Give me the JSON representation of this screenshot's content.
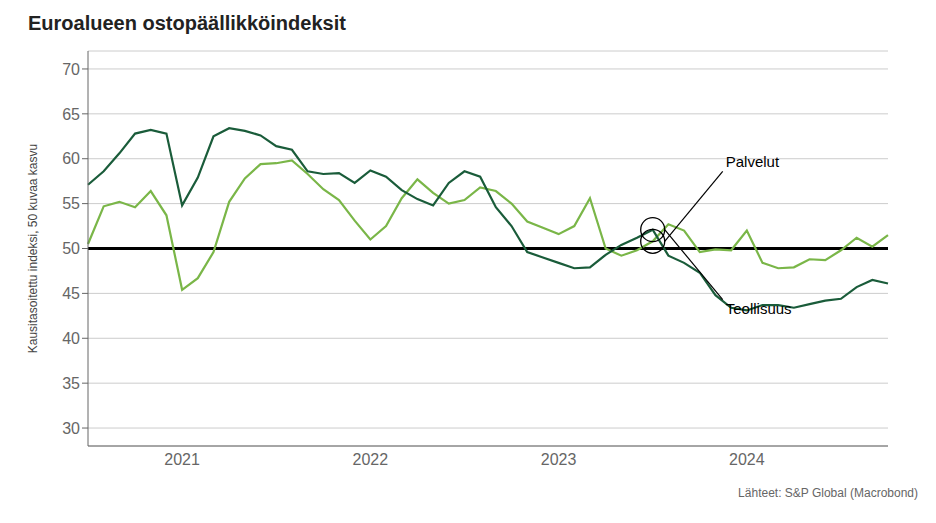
{
  "chart_data": {
    "type": "line",
    "title": "Euroalueen ostopäällikköindeksit",
    "ylabel": "Kausitasoitettu indeksi, 50 kuvaa kasvu",
    "source": "Lähteet: S&P Global (Macrobond)",
    "categories": [
      null,
      null,
      null,
      null,
      null,
      null,
      "2021",
      null,
      null,
      null,
      null,
      null,
      null,
      null,
      null,
      null,
      null,
      null,
      "2022",
      null,
      null,
      null,
      null,
      null,
      null,
      null,
      null,
      null,
      null,
      null,
      "2023",
      null,
      null,
      null,
      null,
      null,
      null,
      null,
      null,
      null,
      null,
      null,
      "2024",
      null,
      null,
      null,
      null,
      null,
      null,
      null,
      null,
      null
    ],
    "series": [
      {
        "name": "Palvelut",
        "color": "#7ab648",
        "values": [
          50.5,
          54.7,
          55.2,
          54.6,
          56.4,
          53.7,
          45.4,
          46.7,
          49.6,
          55.2,
          57.8,
          59.4,
          59.5,
          59.8,
          58.3,
          56.6,
          55.4,
          53.1,
          51.0,
          52.5,
          55.6,
          57.7,
          56.2,
          55.0,
          55.4,
          56.8,
          56.4,
          55.0,
          53.0,
          52.3,
          51.6,
          52.5,
          55.6,
          50.0,
          49.2,
          49.8,
          50.8,
          52.7,
          52.0,
          49.6,
          49.9,
          49.8,
          52.0,
          48.4,
          47.8,
          47.9,
          48.8,
          48.7,
          49.8,
          51.2,
          50.2,
          51.5
        ]
      },
      {
        "name": "Teollisuus",
        "color": "#1a5c3a",
        "values": [
          57.1,
          58.6,
          60.6,
          62.8,
          63.2,
          62.8,
          54.8,
          57.9,
          62.5,
          63.4,
          63.1,
          62.6,
          61.4,
          61.0,
          58.6,
          58.3,
          58.4,
          57.3,
          58.7,
          58.0,
          56.5,
          55.5,
          54.8,
          57.3,
          58.6,
          58.0,
          54.6,
          52.5,
          49.6,
          49.0,
          48.4,
          47.8,
          47.9,
          49.3,
          50.4,
          51.2,
          52.1,
          49.2,
          48.4,
          47.3,
          44.8,
          43.4,
          43.1,
          43.7,
          43.7,
          43.4,
          43.8,
          44.2,
          44.4,
          45.7,
          46.5,
          46.1
        ]
      }
    ],
    "ylim": [
      28,
      72
    ],
    "yticks": [
      30,
      35,
      40,
      45,
      50,
      55,
      60,
      65,
      70
    ],
    "reference_line": 50,
    "grid": true,
    "annotations": [
      {
        "text": "Palvelut",
        "series": "Palvelut",
        "index": 36
      },
      {
        "text": "Teollisuus",
        "series": "Teollisuus",
        "index": 36
      }
    ]
  }
}
